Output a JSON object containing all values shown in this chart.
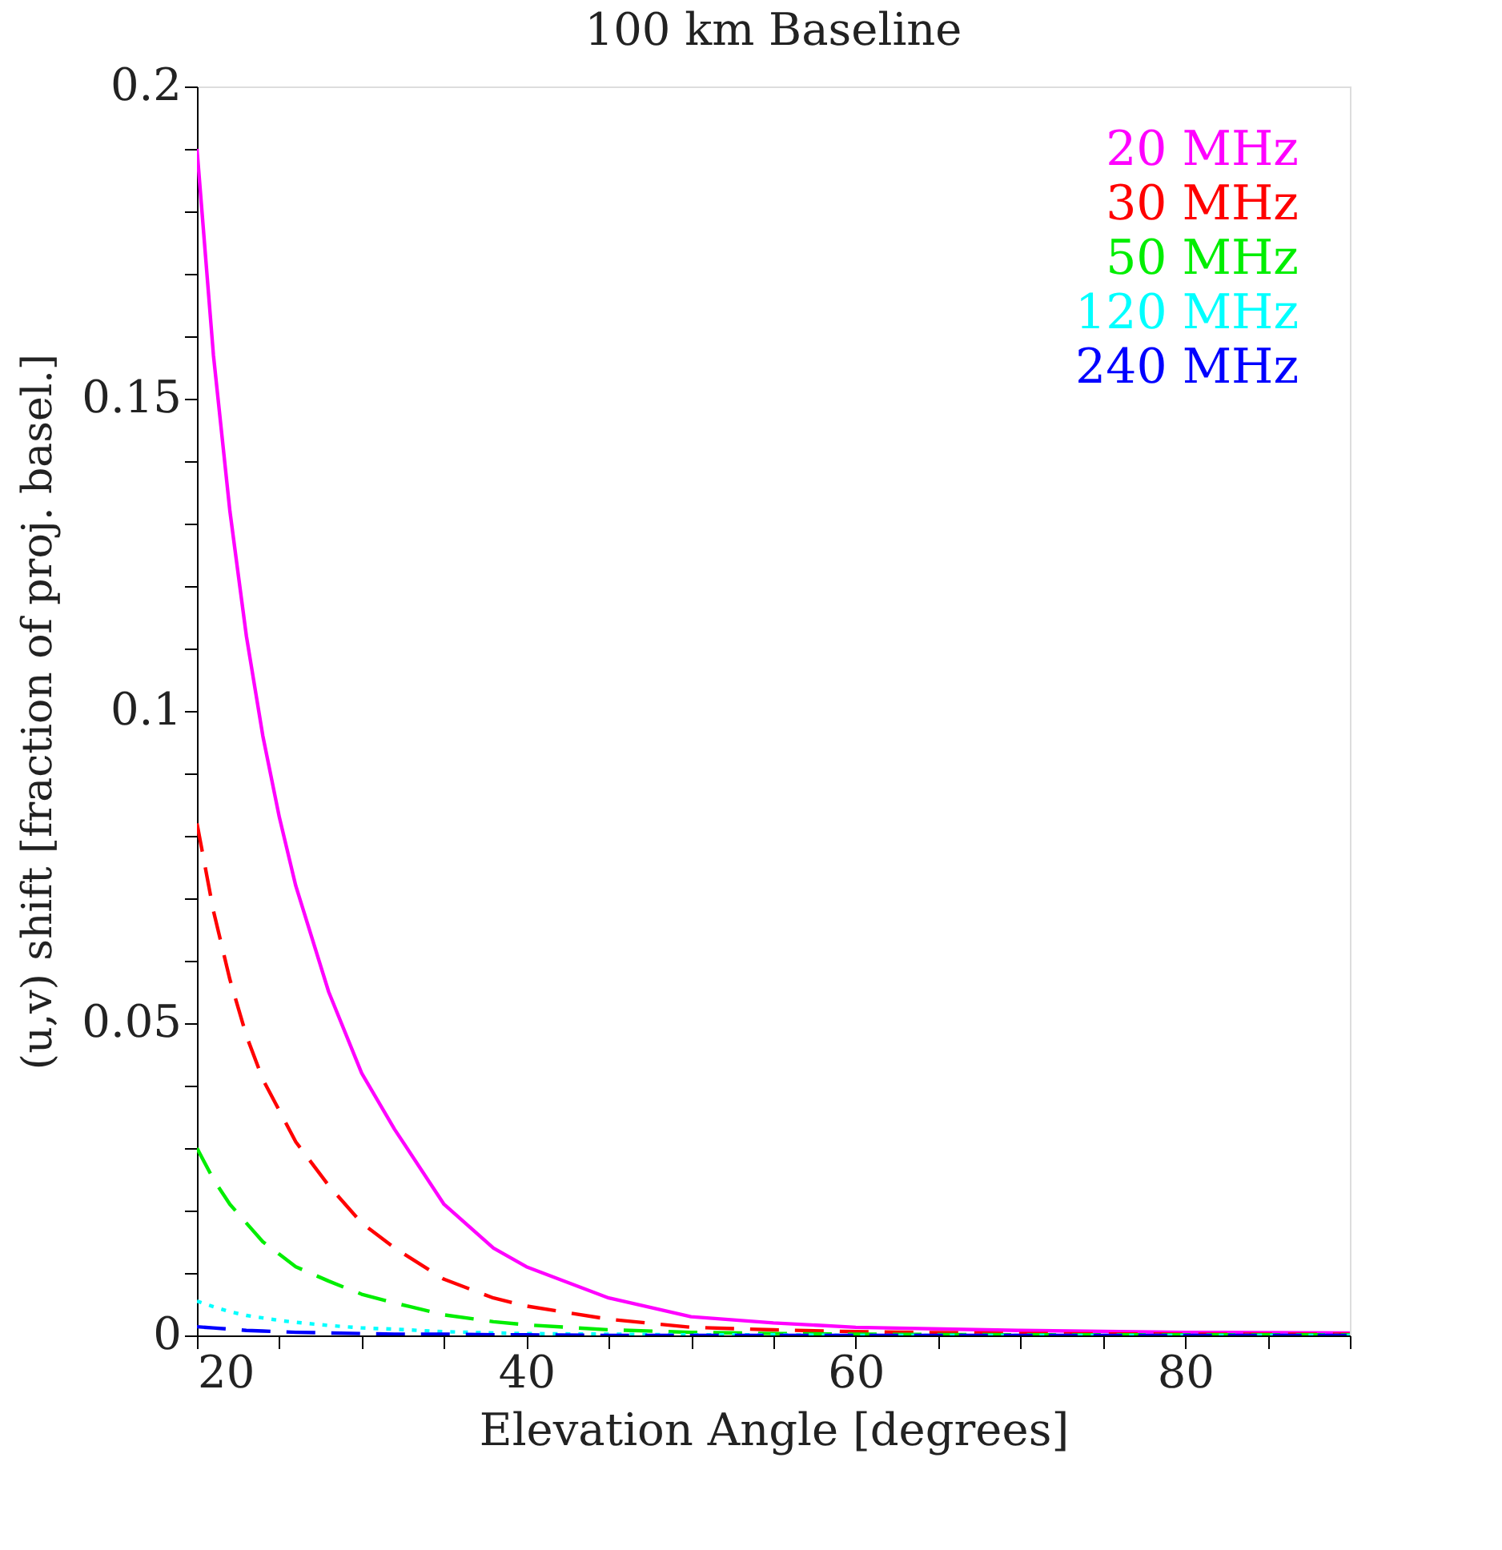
{
  "chart_data": {
    "type": "line",
    "title": "100 km Baseline",
    "xlabel": "Elevation Angle [degrees]",
    "ylabel": "(u,v) shift [fraction of proj. basel.]",
    "x": [
      20,
      21,
      22,
      23,
      24,
      25,
      26,
      28,
      30,
      32,
      35,
      38,
      40,
      45,
      50,
      55,
      60,
      70,
      80,
      90
    ],
    "series": [
      {
        "name": "20 MHz",
        "color": "#ff00ff",
        "line_style": "solid",
        "values": [
          0.19,
          0.157,
          0.132,
          0.112,
          0.096,
          0.083,
          0.072,
          0.055,
          0.042,
          0.033,
          0.021,
          0.014,
          0.011,
          0.006,
          0.003,
          0.002,
          0.0013,
          0.0008,
          0.0005,
          0.0004
        ]
      },
      {
        "name": "30 MHz",
        "color": "#ff0000",
        "line_style": "dashed",
        "values": [
          0.082,
          0.068,
          0.057,
          0.048,
          0.041,
          0.036,
          0.031,
          0.024,
          0.018,
          0.014,
          0.009,
          0.006,
          0.0047,
          0.0026,
          0.0013,
          0.0009,
          0.0006,
          0.0003,
          0.0002,
          0.0002
        ]
      },
      {
        "name": "50 MHz",
        "color": "#00ee00",
        "line_style": "dashed",
        "values": [
          0.03,
          0.025,
          0.021,
          0.018,
          0.015,
          0.013,
          0.011,
          0.0087,
          0.0066,
          0.0052,
          0.0033,
          0.0022,
          0.0017,
          0.0009,
          0.0005,
          0.0003,
          0.0002,
          0.0001,
          0.0001,
          0.0001
        ]
      },
      {
        "name": "120 MHz",
        "color": "#00ffff",
        "line_style": "dotted",
        "values": [
          0.0055,
          0.0046,
          0.0038,
          0.0032,
          0.0028,
          0.0024,
          0.0021,
          0.0016,
          0.0012,
          0.001,
          0.0006,
          0.0004,
          0.0003,
          0.0002,
          0.0001,
          0.0001,
          0,
          0,
          0,
          0
        ]
      },
      {
        "name": "240 MHz",
        "color": "#0000ff",
        "line_style": "dashed",
        "values": [
          0.0014,
          0.0012,
          0.001,
          0.0008,
          0.0007,
          0.0006,
          0.0005,
          0.0004,
          0.0003,
          0.0002,
          0.0002,
          0.0001,
          0.0001,
          0,
          0,
          0,
          0,
          0,
          0,
          0
        ]
      }
    ],
    "xlim": [
      20,
      90
    ],
    "xticks": [
      20,
      {
        "value": 25,
        "label": null
      },
      {
        "value": 30,
        "label": null
      },
      {
        "value": 35,
        "label": null
      },
      40,
      {
        "value": 45,
        "label": null
      },
      {
        "value": 50,
        "label": null
      },
      {
        "value": 55,
        "label": null
      },
      60,
      {
        "value": 65,
        "label": null
      },
      {
        "value": 70,
        "label": null
      },
      {
        "value": 75,
        "label": null
      },
      80,
      {
        "value": 85,
        "label": null
      },
      {
        "value": 90,
        "label": null
      }
    ],
    "ylim": [
      0,
      0.2
    ],
    "yticks": [
      0,
      {
        "value": 0.01,
        "label": null
      },
      {
        "value": 0.02,
        "label": null
      },
      {
        "value": 0.03,
        "label": null
      },
      {
        "value": 0.04,
        "label": null
      },
      0.05,
      {
        "value": 0.06,
        "label": null
      },
      {
        "value": 0.07,
        "label": null
      },
      {
        "value": 0.08,
        "label": null
      },
      {
        "value": 0.09,
        "label": null
      },
      0.1,
      {
        "value": 0.11,
        "label": null
      },
      {
        "value": 0.12,
        "label": null
      },
      {
        "value": 0.13,
        "label": null
      },
      {
        "value": 0.14,
        "label": null
      },
      0.15,
      {
        "value": 0.16,
        "label": null
      },
      {
        "value": 0.17,
        "label": null
      },
      {
        "value": 0.18,
        "label": null
      },
      {
        "value": 0.19,
        "label": null
      },
      0.2
    ],
    "grid": false,
    "legend": "top right",
    "marker": "none"
  }
}
